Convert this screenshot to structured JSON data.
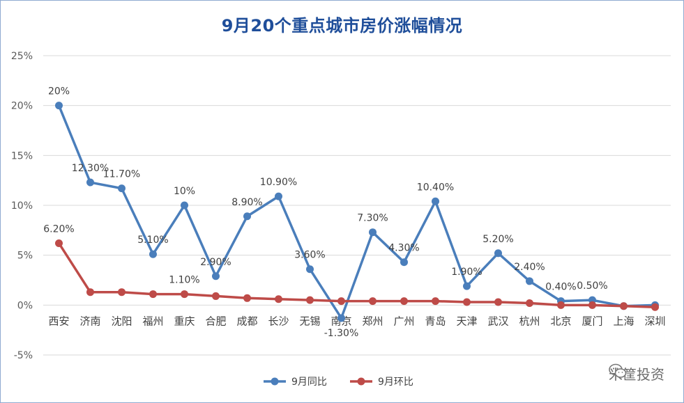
{
  "chart_data": {
    "type": "line",
    "title": "9月20个重点城市房价涨幅情况",
    "categories": [
      "西安",
      "济南",
      "沈阳",
      "福州",
      "重庆",
      "合肥",
      "成都",
      "长沙",
      "无锡",
      "南京",
      "郑州",
      "广州",
      "青岛",
      "天津",
      "武汉",
      "杭州",
      "北京",
      "厦门",
      "上海",
      "深圳"
    ],
    "series": [
      {
        "name": "9月同比",
        "color": "#4a7ebb",
        "values": [
          20,
          12.3,
          11.7,
          5.1,
          10,
          2.9,
          8.9,
          10.9,
          3.6,
          -1.3,
          7.3,
          4.3,
          10.4,
          1.9,
          5.2,
          2.4,
          0.4,
          0.5,
          -0.1,
          0.0
        ],
        "labels": [
          "20%",
          "12.30%",
          "11.70%",
          "5.10%",
          "10%",
          "2.90%",
          "8.90%",
          "10.90%",
          "3.60%",
          "-1.30%",
          "7.30%",
          "4.30%",
          "10.40%",
          "1.90%",
          "5.20%",
          "2.40%",
          "0.40%",
          "0.50%",
          "",
          ""
        ]
      },
      {
        "name": "9月环比",
        "color": "#be4b48",
        "values": [
          6.2,
          1.3,
          1.3,
          1.1,
          1.1,
          0.9,
          0.7,
          0.6,
          0.5,
          0.4,
          0.4,
          0.4,
          0.4,
          0.3,
          0.3,
          0.2,
          0.0,
          0.0,
          -0.1,
          -0.2
        ],
        "labels": [
          "6.20%",
          "",
          "",
          "",
          "1.10%",
          "",
          "",
          "",
          "",
          "",
          "",
          "",
          "",
          "",
          "",
          "",
          "",
          "",
          "",
          ""
        ]
      }
    ],
    "yticks": [
      "25%",
      "20%",
      "15%",
      "10%",
      "5%",
      "0%",
      "-5%"
    ],
    "ytick_values": [
      25,
      20,
      15,
      10,
      5,
      0,
      -5
    ],
    "ylim": [
      -5,
      25
    ],
    "grid": true,
    "legend_position": "bottom"
  },
  "watermark": {
    "text": "米筐投资",
    "icon": "wechat-icon"
  }
}
